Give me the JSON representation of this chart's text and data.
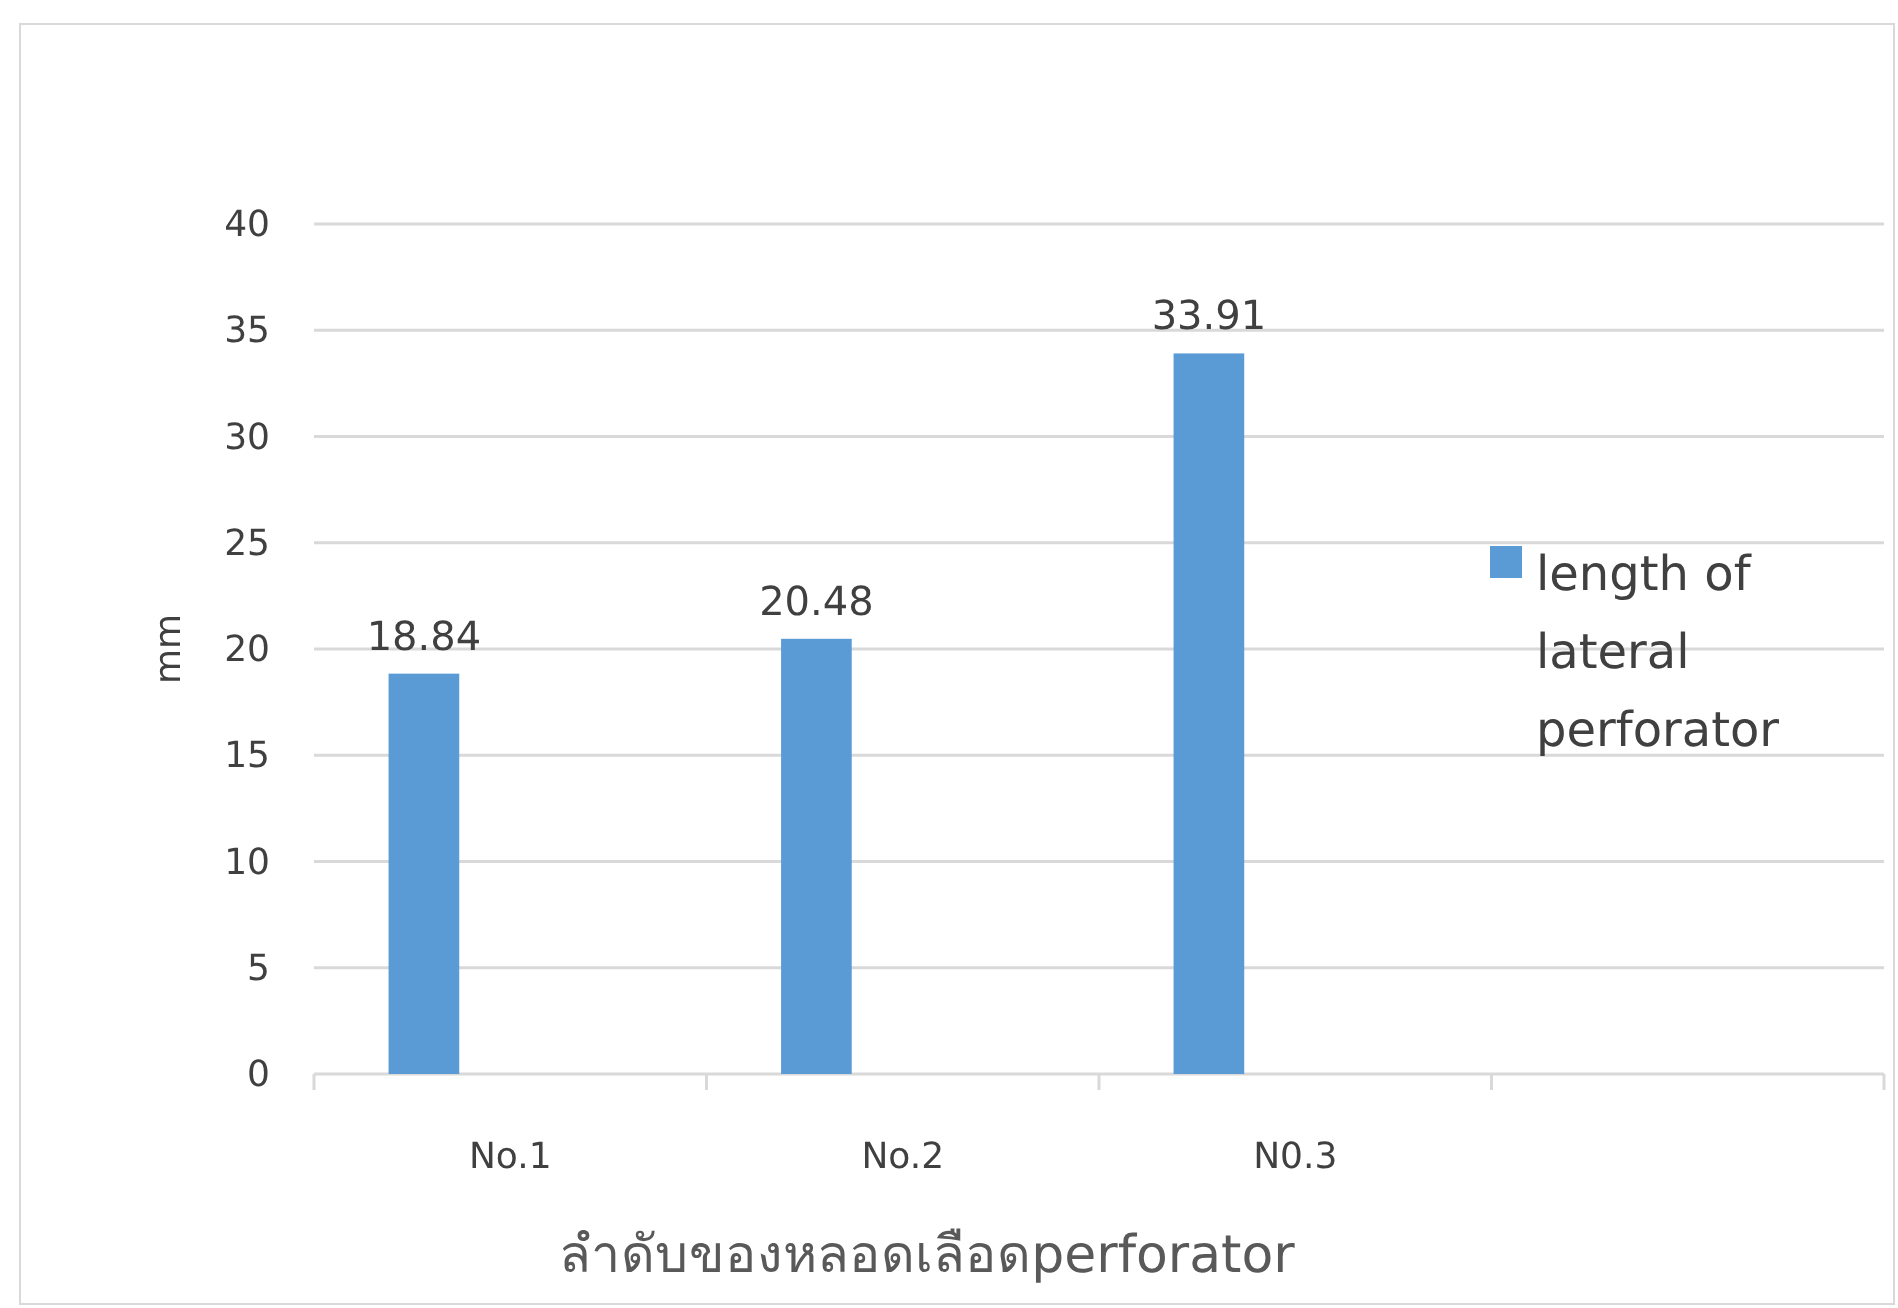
{
  "chart_data": {
    "type": "bar",
    "xlabel": "ลำดับของหลอดเลือดperforator",
    "ylabel": "mm",
    "categories": [
      "No.1",
      "No.2",
      "N0.3",
      null
    ],
    "series": [
      {
        "name": "length of lateral perforator",
        "color": "#5b9bd5",
        "values": [
          18.84,
          20.48,
          33.91,
          null
        ]
      }
    ],
    "ylim": [
      0,
      40
    ],
    "yticks": [
      0,
      5,
      10,
      15,
      20,
      25,
      30,
      35,
      40
    ],
    "grid": "y",
    "legend": "right",
    "data_labels": true
  }
}
